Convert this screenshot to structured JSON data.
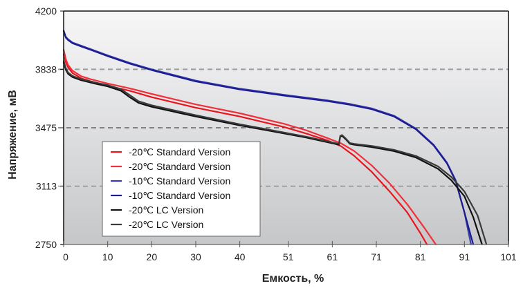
{
  "chart_data": {
    "type": "line",
    "title": "",
    "xlabel": "Емкость, %",
    "ylabel": "Напряжение, мВ",
    "xlim": [
      0,
      101
    ],
    "ylim": [
      2750,
      4200
    ],
    "x_ticks": [
      "0",
      "10",
      "20",
      "30",
      "40",
      "51",
      "61",
      "71",
      "81",
      "91",
      "101"
    ],
    "x_tick_values": [
      0,
      10,
      20,
      30,
      40,
      51,
      61,
      71,
      81,
      91,
      101
    ],
    "y_ticks": [
      "2750",
      "3113",
      "3475",
      "3838",
      "4200"
    ],
    "y_tick_values": [
      2750,
      3113,
      3475,
      3838,
      4200
    ],
    "gridlines": [
      {
        "value": 3838,
        "style": "dashed",
        "color": "#9a9a9a"
      },
      {
        "value": 3475,
        "style": "dashed",
        "color": "#222222"
      },
      {
        "value": 3113,
        "style": "dashed",
        "color": "#6a6a6a"
      }
    ],
    "legend_position": "bottom-left-inside",
    "series": [
      {
        "name": "-20℃ Standard Version",
        "color": "#e8141e",
        "x": [
          0,
          0.5,
          1,
          2,
          4,
          6,
          10,
          15,
          20,
          30,
          40,
          50,
          55,
          60,
          63,
          66,
          70,
          74,
          78,
          81,
          82.5
        ],
        "y": [
          3930,
          3880,
          3850,
          3815,
          3782,
          3765,
          3735,
          3705,
          3665,
          3600,
          3545,
          3480,
          3440,
          3395,
          3360,
          3300,
          3200,
          3080,
          2950,
          2820,
          2750
        ]
      },
      {
        "name": "-20℃ Standard Version",
        "color": "#f0303a",
        "x": [
          0,
          0.5,
          1,
          2,
          4,
          6,
          10,
          15,
          20,
          30,
          40,
          50,
          55,
          60,
          63,
          66,
          70,
          74,
          78,
          82,
          84.5
        ],
        "y": [
          3960,
          3900,
          3865,
          3830,
          3795,
          3778,
          3750,
          3720,
          3685,
          3620,
          3565,
          3500,
          3460,
          3410,
          3378,
          3330,
          3240,
          3130,
          3000,
          2850,
          2750
        ]
      },
      {
        "name": "-10℃ Standard Version",
        "color": "#3a3ab0",
        "x": [
          0,
          0.5,
          1,
          2,
          4,
          6,
          10,
          15,
          20,
          30,
          40,
          50,
          60,
          65,
          70,
          75,
          80,
          84,
          87,
          89,
          91,
          92.5
        ],
        "y": [
          4080,
          4040,
          4025,
          4005,
          3985,
          3965,
          3925,
          3878,
          3838,
          3768,
          3718,
          3680,
          3645,
          3623,
          3595,
          3550,
          3470,
          3370,
          3260,
          3150,
          2950,
          2750
        ]
      },
      {
        "name": "-10℃ Standard Version",
        "color": "#1c1c8e",
        "x": [
          0,
          0.5,
          1,
          2,
          4,
          6,
          10,
          15,
          20,
          30,
          40,
          50,
          60,
          65,
          70,
          75,
          80,
          84,
          87,
          89,
          91,
          93
        ],
        "y": [
          4075,
          4035,
          4020,
          4000,
          3980,
          3960,
          3920,
          3873,
          3833,
          3763,
          3713,
          3675,
          3640,
          3618,
          3590,
          3545,
          3465,
          3365,
          3255,
          3145,
          2950,
          2750
        ]
      },
      {
        "name": "-20℃ LC Version",
        "color": "#111111",
        "x": [
          0,
          0.5,
          1,
          2,
          4,
          7,
          10,
          13,
          15,
          17,
          20,
          30,
          40,
          50,
          55,
          60,
          62.5,
          62.8,
          63.2,
          64,
          65,
          66,
          70,
          75,
          80,
          85,
          88,
          91,
          93,
          95
        ],
        "y": [
          3880,
          3835,
          3810,
          3790,
          3770,
          3750,
          3732,
          3705,
          3665,
          3630,
          3605,
          3545,
          3490,
          3440,
          3415,
          3385,
          3370,
          3420,
          3425,
          3405,
          3375,
          3370,
          3355,
          3330,
          3290,
          3220,
          3150,
          3050,
          2920,
          2750
        ]
      },
      {
        "name": "-20℃ LC Version",
        "color": "#3a3a3a",
        "x": [
          0,
          0.5,
          1,
          2,
          4,
          7,
          10,
          13,
          15,
          17,
          20,
          30,
          40,
          50,
          55,
          60,
          62.5,
          62.8,
          63.2,
          64,
          65,
          66,
          70,
          75,
          80,
          85,
          88,
          91,
          94,
          96
        ],
        "y": [
          3890,
          3845,
          3818,
          3797,
          3776,
          3757,
          3740,
          3715,
          3678,
          3640,
          3615,
          3553,
          3497,
          3446,
          3420,
          3390,
          3375,
          3425,
          3430,
          3410,
          3380,
          3375,
          3362,
          3338,
          3300,
          3235,
          3170,
          3080,
          2930,
          2750
        ]
      }
    ]
  }
}
